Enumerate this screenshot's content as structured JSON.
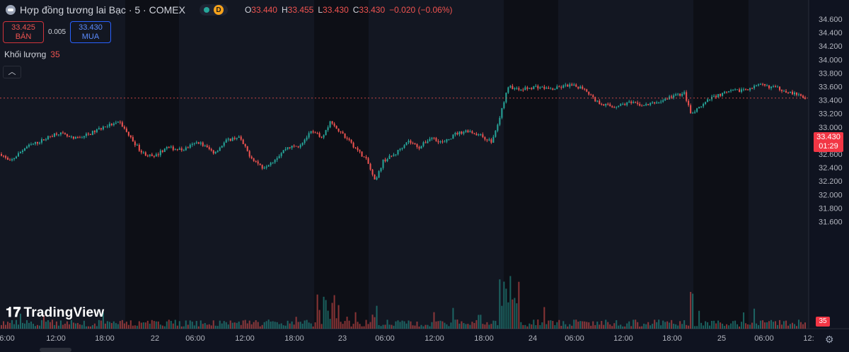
{
  "header": {
    "title": "Hợp đồng tương lai Bạc · 5 · COMEX",
    "d_badge": "D",
    "ohlc": [
      {
        "k": "O",
        "v": "33.440"
      },
      {
        "k": "H",
        "v": "33.455"
      },
      {
        "k": "L",
        "v": "33.430"
      },
      {
        "k": "C",
        "v": "33.430"
      }
    ],
    "change": "−0.020 (−0.06%)"
  },
  "trade": {
    "sell_price": "33.425",
    "sell_label": "BÁN",
    "spread": "0.005",
    "buy_price": "33.430",
    "buy_label": "MUA"
  },
  "volume_label": "Khối lượng",
  "volume_value": "35",
  "collapse_icon": "chevron-up-icon",
  "brand": "TradingView",
  "price_tag": {
    "price": "33.430",
    "countdown": "01:29"
  },
  "volume_tag": "35",
  "colors": {
    "bg": "#131722",
    "session_bg": "#0d0f16",
    "up": "#26a69a",
    "down": "#ef5350",
    "accent": "#f23645"
  },
  "chart_data": {
    "type": "candlestick",
    "ylim": [
      31.6,
      34.7
    ],
    "y_ticks": [
      "34.600",
      "34.400",
      "34.200",
      "34.000",
      "33.800",
      "33.600",
      "33.400",
      "33.200",
      "33.000",
      "32.800",
      "32.600",
      "32.400",
      "32.200",
      "32.000",
      "31.800",
      "31.600"
    ],
    "x_ticks": [
      "6:00",
      "12:00",
      "18:00",
      "22",
      "06:00",
      "12:00",
      "18:00",
      "23",
      "06:00",
      "12:00",
      "18:00",
      "24",
      "06:00",
      "12:00",
      "18:00",
      "25",
      "06:00",
      "12:"
    ],
    "close_path": [
      {
        "t": 0,
        "p": 32.6
      },
      {
        "t": 0.01,
        "p": 32.48
      },
      {
        "t": 0.03,
        "p": 32.7
      },
      {
        "t": 0.05,
        "p": 32.8
      },
      {
        "t": 0.07,
        "p": 32.92
      },
      {
        "t": 0.09,
        "p": 32.82
      },
      {
        "t": 0.11,
        "p": 32.9
      },
      {
        "t": 0.13,
        "p": 33.02
      },
      {
        "t": 0.148,
        "p": 33.06
      },
      {
        "t": 0.16,
        "p": 32.85
      },
      {
        "t": 0.175,
        "p": 32.62
      },
      {
        "t": 0.19,
        "p": 32.55
      },
      {
        "t": 0.205,
        "p": 32.7
      },
      {
        "t": 0.225,
        "p": 32.66
      },
      {
        "t": 0.245,
        "p": 32.78
      },
      {
        "t": 0.265,
        "p": 32.62
      },
      {
        "t": 0.28,
        "p": 32.8
      },
      {
        "t": 0.295,
        "p": 32.86
      },
      {
        "t": 0.31,
        "p": 32.56
      },
      {
        "t": 0.325,
        "p": 32.4
      },
      {
        "t": 0.34,
        "p": 32.52
      },
      {
        "t": 0.355,
        "p": 32.7
      },
      {
        "t": 0.37,
        "p": 32.72
      },
      {
        "t": 0.385,
        "p": 32.92
      },
      {
        "t": 0.4,
        "p": 32.86
      },
      {
        "t": 0.41,
        "p": 33.1
      },
      {
        "t": 0.425,
        "p": 32.88
      },
      {
        "t": 0.44,
        "p": 32.7
      },
      {
        "t": 0.455,
        "p": 32.5
      },
      {
        "t": 0.465,
        "p": 32.18
      },
      {
        "t": 0.475,
        "p": 32.5
      },
      {
        "t": 0.49,
        "p": 32.6
      },
      {
        "t": 0.505,
        "p": 32.8
      },
      {
        "t": 0.52,
        "p": 32.7
      },
      {
        "t": 0.535,
        "p": 32.85
      },
      {
        "t": 0.55,
        "p": 32.76
      },
      {
        "t": 0.565,
        "p": 32.9
      },
      {
        "t": 0.58,
        "p": 32.95
      },
      {
        "t": 0.595,
        "p": 32.88
      },
      {
        "t": 0.61,
        "p": 32.78
      },
      {
        "t": 0.618,
        "p": 33.05
      },
      {
        "t": 0.63,
        "p": 33.6
      },
      {
        "t": 0.645,
        "p": 33.55
      },
      {
        "t": 0.665,
        "p": 33.6
      },
      {
        "t": 0.685,
        "p": 33.56
      },
      {
        "t": 0.705,
        "p": 33.62
      },
      {
        "t": 0.725,
        "p": 33.58
      },
      {
        "t": 0.74,
        "p": 33.38
      },
      {
        "t": 0.76,
        "p": 33.3
      },
      {
        "t": 0.78,
        "p": 33.36
      },
      {
        "t": 0.8,
        "p": 33.32
      },
      {
        "t": 0.82,
        "p": 33.38
      },
      {
        "t": 0.835,
        "p": 33.46
      },
      {
        "t": 0.85,
        "p": 33.5
      },
      {
        "t": 0.858,
        "p": 33.18
      },
      {
        "t": 0.87,
        "p": 33.3
      },
      {
        "t": 0.885,
        "p": 33.45
      },
      {
        "t": 0.905,
        "p": 33.52
      },
      {
        "t": 0.925,
        "p": 33.56
      },
      {
        "t": 0.945,
        "p": 33.62
      },
      {
        "t": 0.965,
        "p": 33.58
      },
      {
        "t": 0.985,
        "p": 33.5
      },
      {
        "t": 1.0,
        "p": 33.43
      }
    ],
    "current_price": 33.43
  }
}
